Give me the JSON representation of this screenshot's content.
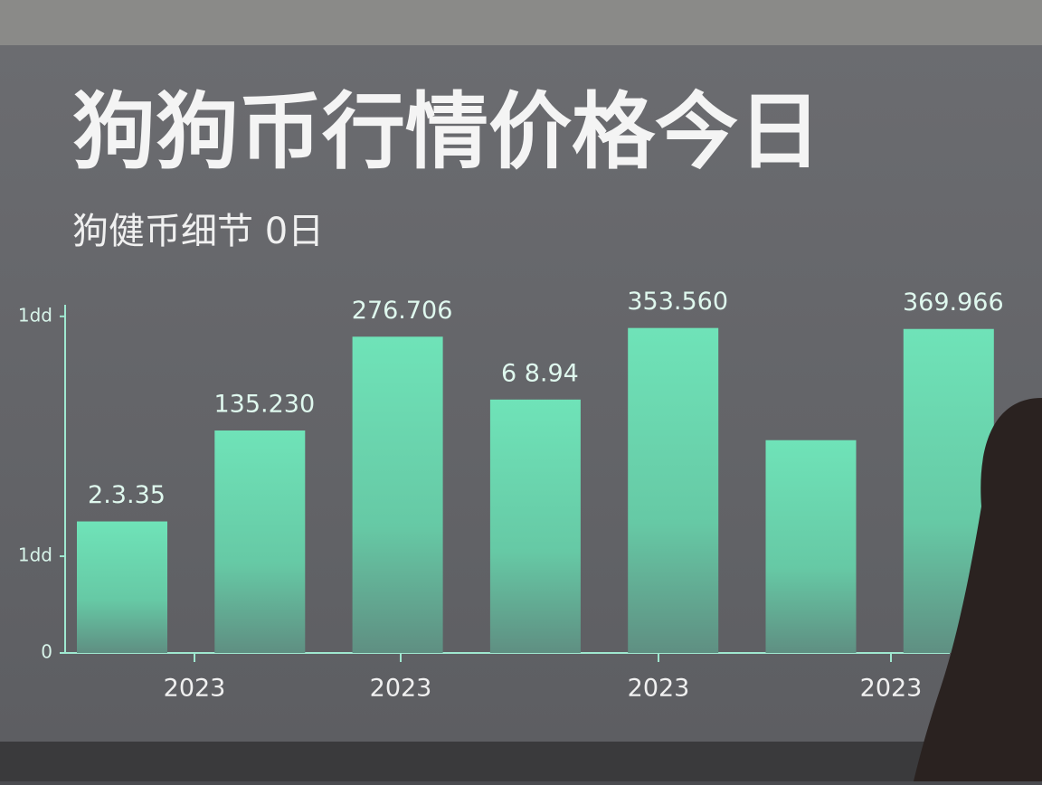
{
  "chart_data": {
    "type": "bar",
    "title": "狗狗币行情价格今日",
    "subtitle": "狗健币细节 0日",
    "values": [
      136,
      230,
      327,
      262,
      336,
      220,
      335
    ],
    "bar_labels": [
      "2.3.35",
      "135.230",
      "276.706",
      "6 8.94",
      "353.560",
      null,
      "369.966"
    ],
    "x_tick_labels": [
      "2023",
      "2023",
      "2023",
      "2023"
    ],
    "color": "#6fe3b8",
    "ylim": [
      0,
      360
    ],
    "yticks": [
      0,
      {
        "value": 100,
        "label": "1dd"
      },
      {
        "value": 348,
        "label": "1dd"
      }
    ]
  }
}
